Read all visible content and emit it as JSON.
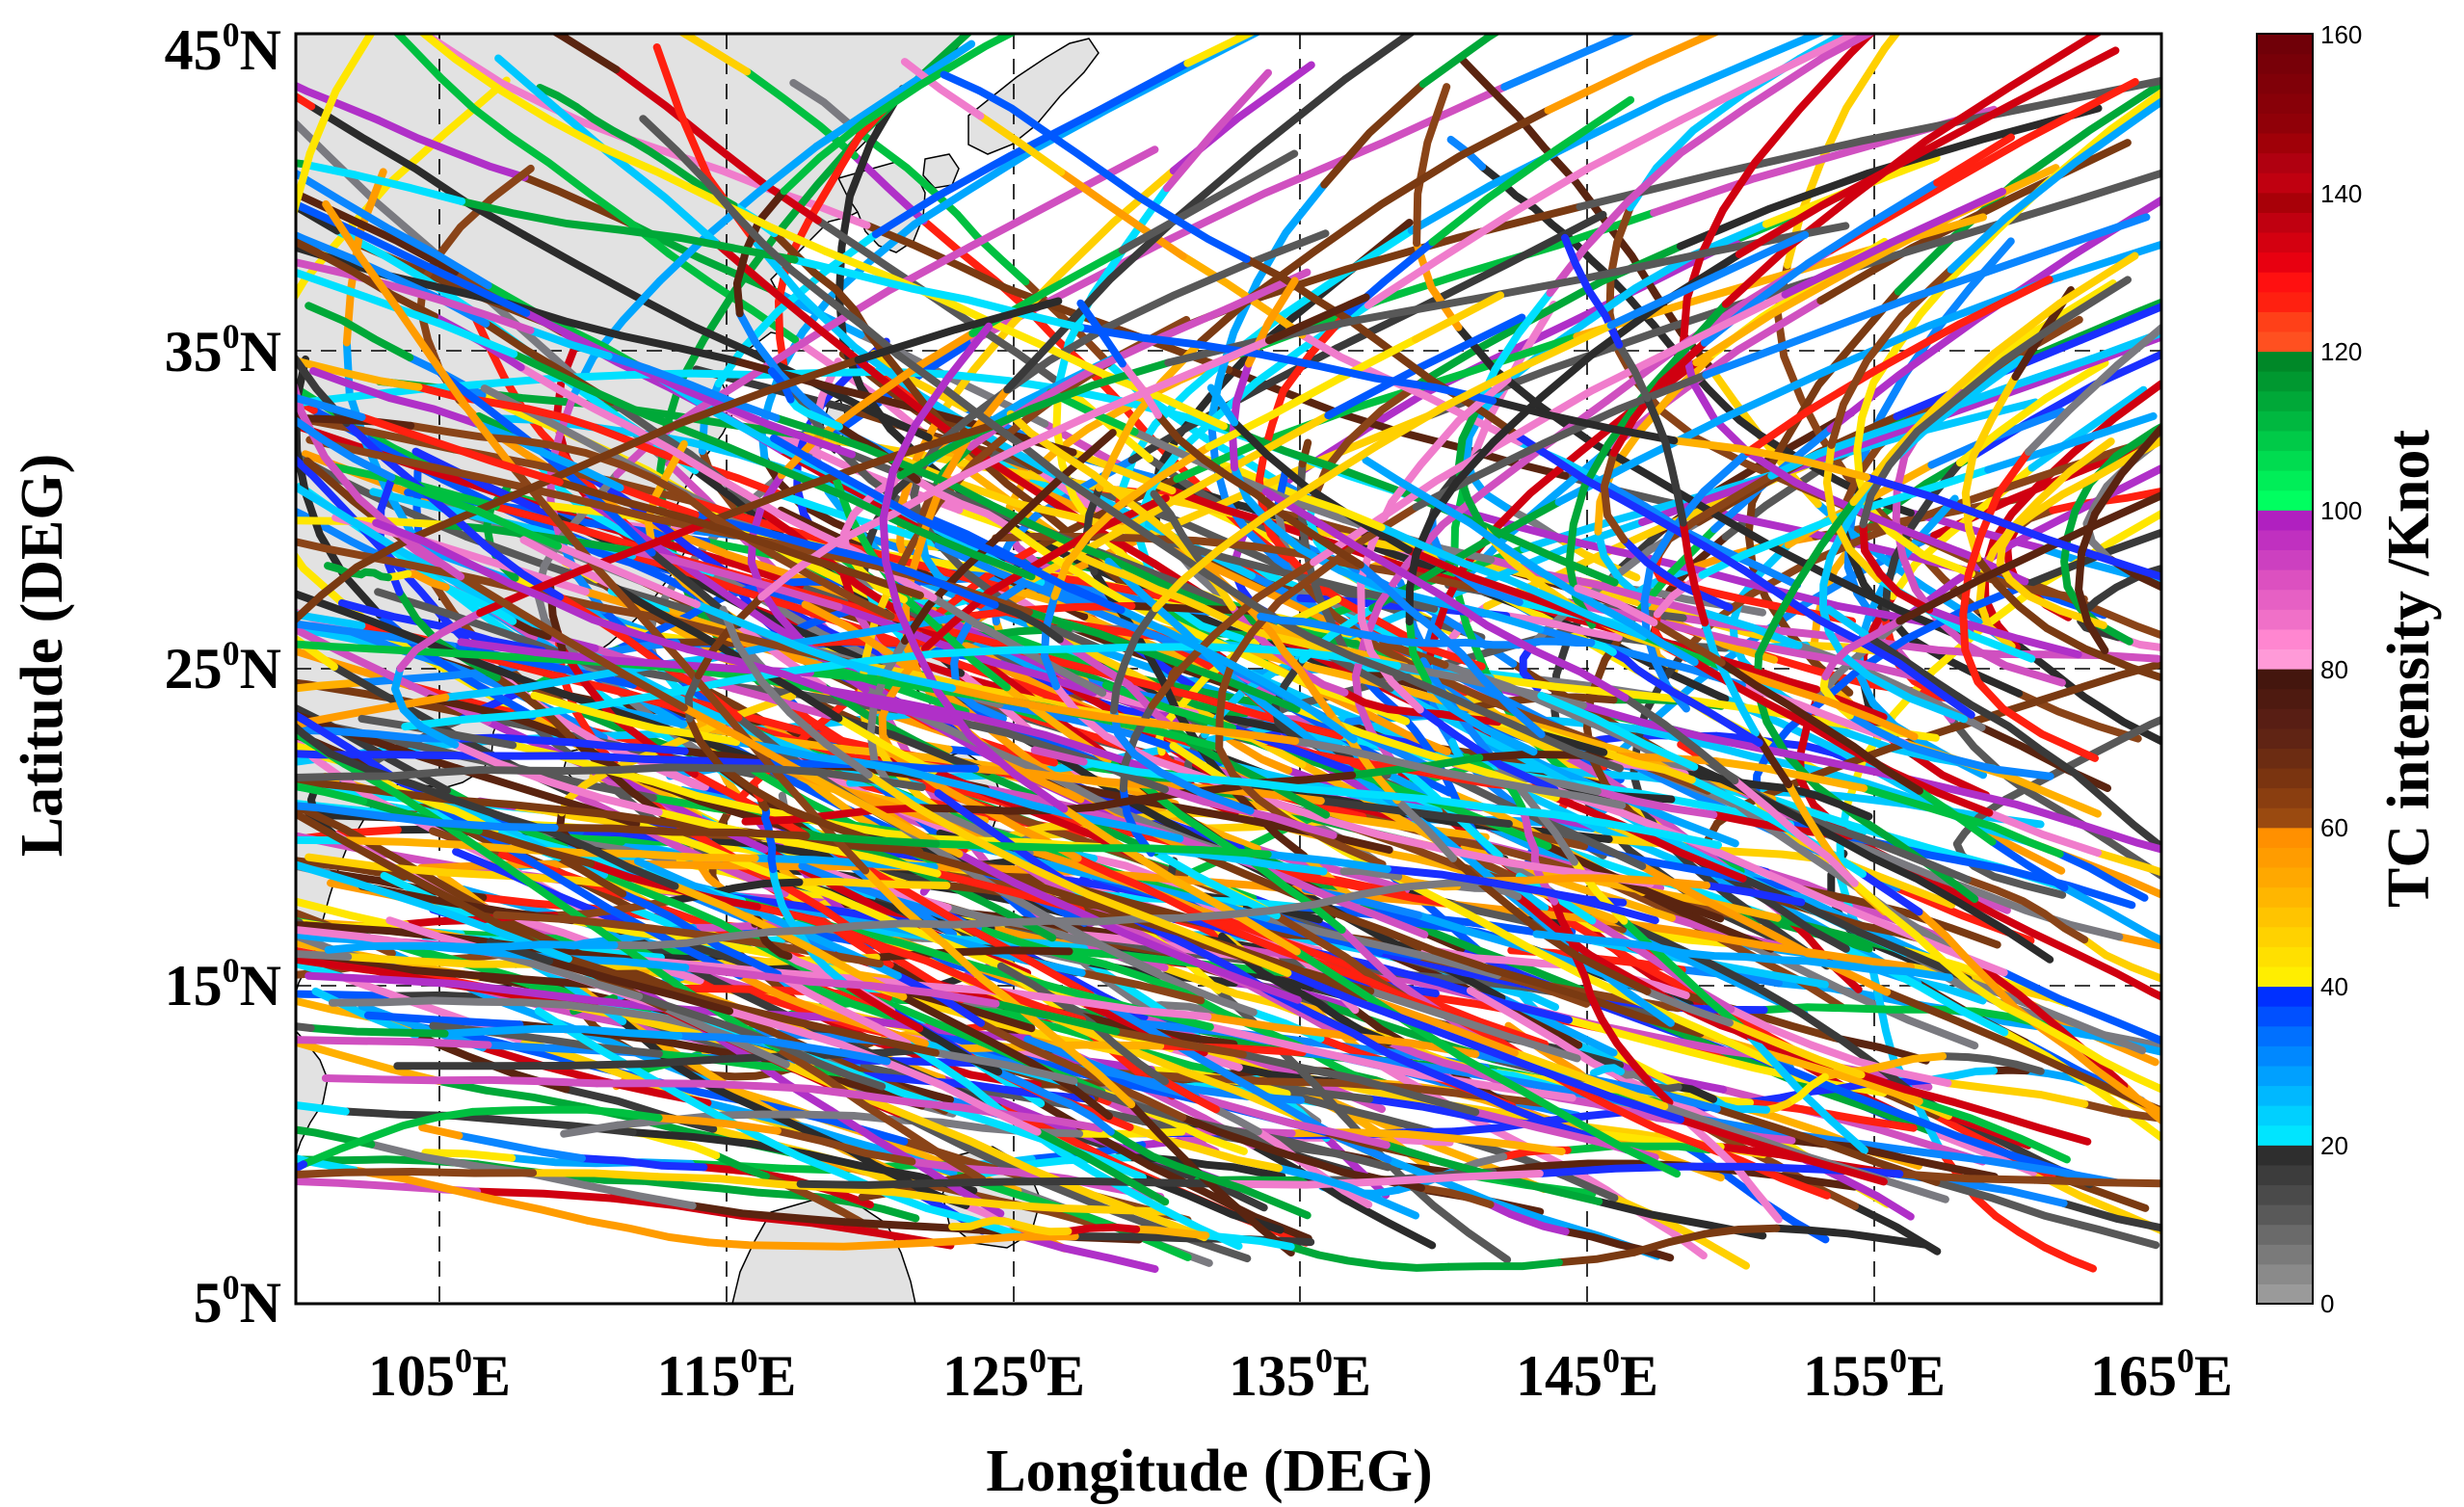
{
  "chart_data": {
    "type": "map-track",
    "xlabel": "Longitude (DEG)",
    "ylabel": "Latitude (DEG)",
    "xlim": [
      100,
      165
    ],
    "ylim": [
      5,
      45
    ],
    "xticks": [
      {
        "value": 105,
        "num": "105",
        "sup": "0",
        "suffix": "E"
      },
      {
        "value": 115,
        "num": "115",
        "sup": "0",
        "suffix": "E"
      },
      {
        "value": 125,
        "num": "125",
        "sup": "0",
        "suffix": "E"
      },
      {
        "value": 135,
        "num": "135",
        "sup": "0",
        "suffix": "E"
      },
      {
        "value": 145,
        "num": "145",
        "sup": "0",
        "suffix": "E"
      },
      {
        "value": 155,
        "num": "155",
        "sup": "0",
        "suffix": "E"
      },
      {
        "value": 165,
        "num": "165",
        "sup": "0",
        "suffix": "E"
      }
    ],
    "yticks": [
      {
        "value": 5,
        "num": "5",
        "sup": "0",
        "suffix": "N"
      },
      {
        "value": 15,
        "num": "15",
        "sup": "0",
        "suffix": "N"
      },
      {
        "value": 25,
        "num": "25",
        "sup": "0",
        "suffix": "N"
      },
      {
        "value": 35,
        "num": "35",
        "sup": "0",
        "suffix": "N"
      },
      {
        "value": 45,
        "num": "45",
        "sup": "0",
        "suffix": "N"
      }
    ],
    "grid": "dashed",
    "colorbar": {
      "label": "TC intensity /Knot",
      "range": [
        0,
        160
      ],
      "ticks": [
        "0",
        "20",
        "40",
        "60",
        "80",
        "100",
        "120",
        "140",
        "160"
      ],
      "bands": [
        {
          "from": 0,
          "to": 20,
          "colors": [
            "#9a9a9a",
            "#8a8a8a",
            "#7a7a7a",
            "#6a6a6a",
            "#595959",
            "#4a4a4a",
            "#3c3c3c",
            "#2e2e2e"
          ]
        },
        {
          "from": 20,
          "to": 40,
          "colors": [
            "#00e5ff",
            "#00d0ff",
            "#00b8ff",
            "#00a0ff",
            "#0088ff",
            "#0070ff",
            "#0050ff",
            "#0030ff"
          ]
        },
        {
          "from": 40,
          "to": 60,
          "colors": [
            "#ffee00",
            "#ffe000",
            "#ffd200",
            "#ffc400",
            "#ffb600",
            "#ffa800",
            "#ff9c00",
            "#ff9000"
          ]
        },
        {
          "from": 60,
          "to": 80,
          "colors": [
            "#9a4a10",
            "#8a3e10",
            "#7a3410",
            "#6c2c12",
            "#602414",
            "#581e14",
            "#4e1a10",
            "#44160e"
          ]
        },
        {
          "from": 80,
          "to": 100,
          "colors": [
            "#ff9ad8",
            "#ff86d0",
            "#f070c8",
            "#e660c4",
            "#dc50c0",
            "#cc40c0",
            "#c030c0",
            "#b020c0"
          ]
        },
        {
          "from": 100,
          "to": 120,
          "colors": [
            "#00ff60",
            "#00ee58",
            "#00dc50",
            "#00ca48",
            "#00b840",
            "#00a838",
            "#009830",
            "#008828"
          ]
        },
        {
          "from": 120,
          "to": 140,
          "colors": [
            "#ff5020",
            "#ff4018",
            "#ff2010",
            "#ff1010",
            "#e80010",
            "#d40010",
            "#c00010",
            "#a80008"
          ]
        },
        {
          "from": 140,
          "to": 160,
          "colors": [
            "#c00010",
            "#b00010",
            "#a00008",
            "#900008",
            "#880008",
            "#800008",
            "#780008",
            "#700008"
          ]
        }
      ]
    },
    "track_palette": [
      "#3a3a3a",
      "#2b2b2b",
      "#585858",
      "#7a7a80",
      "#00e0ff",
      "#00c8ff",
      "#00a6ff",
      "#0a86ff",
      "#0058ff",
      "#1a2fff",
      "#ffd000",
      "#ffb000",
      "#ff9c00",
      "#ffe600",
      "#7a3a12",
      "#5a2410",
      "#8a4418",
      "#f07ccc",
      "#d050c0",
      "#b030c8",
      "#00c040",
      "#00a838",
      "#ff2010",
      "#d00010"
    ],
    "track_count": 420,
    "track_seed": 20240517
  }
}
